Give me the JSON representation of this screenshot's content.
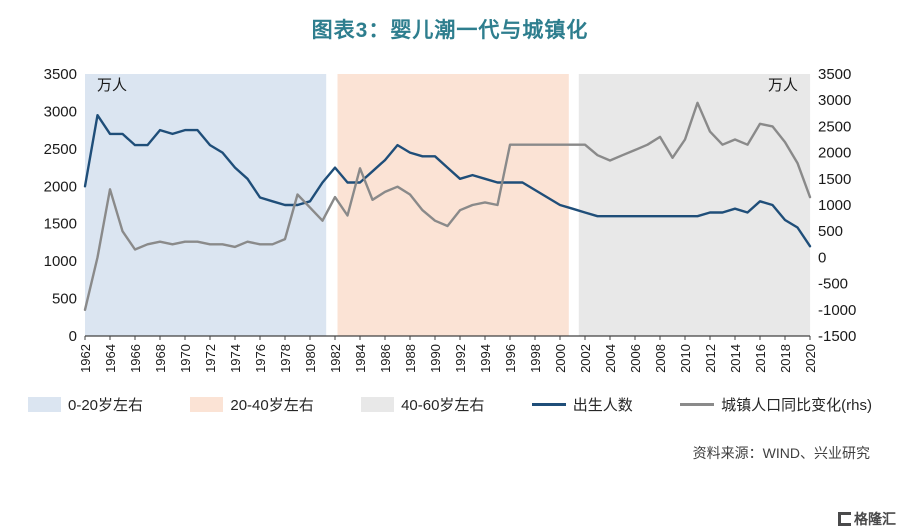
{
  "title": "图表3：婴儿潮一代与城镇化",
  "source": "资料来源：WIND、兴业研究",
  "logo": {
    "text": "格隆汇"
  },
  "colors": {
    "title": "#2e7e8e",
    "birth_line": "#1f4e79",
    "urban_line": "#8a8a8a",
    "region_blue": "#dbe5f1",
    "region_orange": "#fbe3d5",
    "region_gray": "#e8e8e8",
    "axis_text": "#1a1a1a"
  },
  "legend": {
    "items": [
      {
        "type": "region",
        "label": "0-20岁左右",
        "color": "#dbe5f1"
      },
      {
        "type": "region",
        "label": "20-40岁左右",
        "color": "#fbe3d5"
      },
      {
        "type": "region",
        "label": "40-60岁左右",
        "color": "#e8e8e8"
      },
      {
        "type": "line",
        "label": "出生人数",
        "color": "#1f4e79"
      },
      {
        "type": "line",
        "label": "城镇人口同比变化(rhs)",
        "color": "#8a8a8a"
      }
    ]
  },
  "chart_data": {
    "type": "line",
    "title": "图表3：婴儿潮一代与城镇化",
    "grid": false,
    "legend_position": "bottom",
    "x": [
      1962,
      1963,
      1964,
      1965,
      1966,
      1967,
      1968,
      1969,
      1970,
      1971,
      1972,
      1973,
      1974,
      1975,
      1976,
      1977,
      1978,
      1979,
      1980,
      1981,
      1982,
      1983,
      1984,
      1985,
      1986,
      1987,
      1988,
      1989,
      1990,
      1991,
      1992,
      1993,
      1994,
      1995,
      1996,
      1997,
      1998,
      1999,
      2000,
      2001,
      2002,
      2003,
      2004,
      2005,
      2006,
      2007,
      2008,
      2009,
      2010,
      2011,
      2012,
      2013,
      2014,
      2015,
      2016,
      2017,
      2018,
      2019,
      2020
    ],
    "x_tick_step": 2,
    "left_axis": {
      "label": "万人",
      "min": 0,
      "max": 3500,
      "step": 500
    },
    "right_axis": {
      "label": "万人",
      "min": -1500,
      "max": 3500,
      "step": 500
    },
    "regions": [
      {
        "label": "0-20岁左右",
        "from": 1962,
        "to": 1981.3,
        "color": "#dbe5f1"
      },
      {
        "label": "20-40岁左右",
        "from": 1982.2,
        "to": 2000.7,
        "color": "#fbe3d5"
      },
      {
        "label": "40-60岁左右",
        "from": 2001.5,
        "to": 2020,
        "color": "#e8e8e8"
      }
    ],
    "series": [
      {
        "name": "出生人数",
        "axis": "left",
        "color": "#1f4e79",
        "values": [
          2000,
          2950,
          2700,
          2700,
          2550,
          2550,
          2750,
          2700,
          2750,
          2750,
          2550,
          2450,
          2250,
          2100,
          1850,
          1800,
          1750,
          1750,
          1800,
          2050,
          2250,
          2050,
          2050,
          2200,
          2350,
          2550,
          2450,
          2400,
          2400,
          2250,
          2100,
          2150,
          2100,
          2050,
          2050,
          2050,
          1950,
          1850,
          1750,
          1700,
          1650,
          1600,
          1600,
          1600,
          1600,
          1600,
          1600,
          1600,
          1600,
          1600,
          1650,
          1650,
          1700,
          1650,
          1800,
          1750,
          1550,
          1450,
          1200
        ]
      },
      {
        "name": "城镇人口同比变化(rhs)",
        "axis": "right",
        "color": "#8a8a8a",
        "values": [
          -1000,
          0,
          1300,
          500,
          150,
          250,
          300,
          250,
          300,
          300,
          250,
          250,
          200,
          300,
          250,
          250,
          350,
          1200,
          950,
          700,
          1150,
          800,
          1700,
          1100,
          1250,
          1350,
          1200,
          900,
          700,
          600,
          900,
          1000,
          1050,
          1000,
          2150,
          2150,
          2150,
          2150,
          2150,
          2150,
          2150,
          1950,
          1850,
          1950,
          2050,
          2150,
          2300,
          1900,
          2250,
          2950,
          2400,
          2150,
          2250,
          2150,
          2550,
          2500,
          2200,
          1800,
          1150
        ]
      }
    ]
  }
}
